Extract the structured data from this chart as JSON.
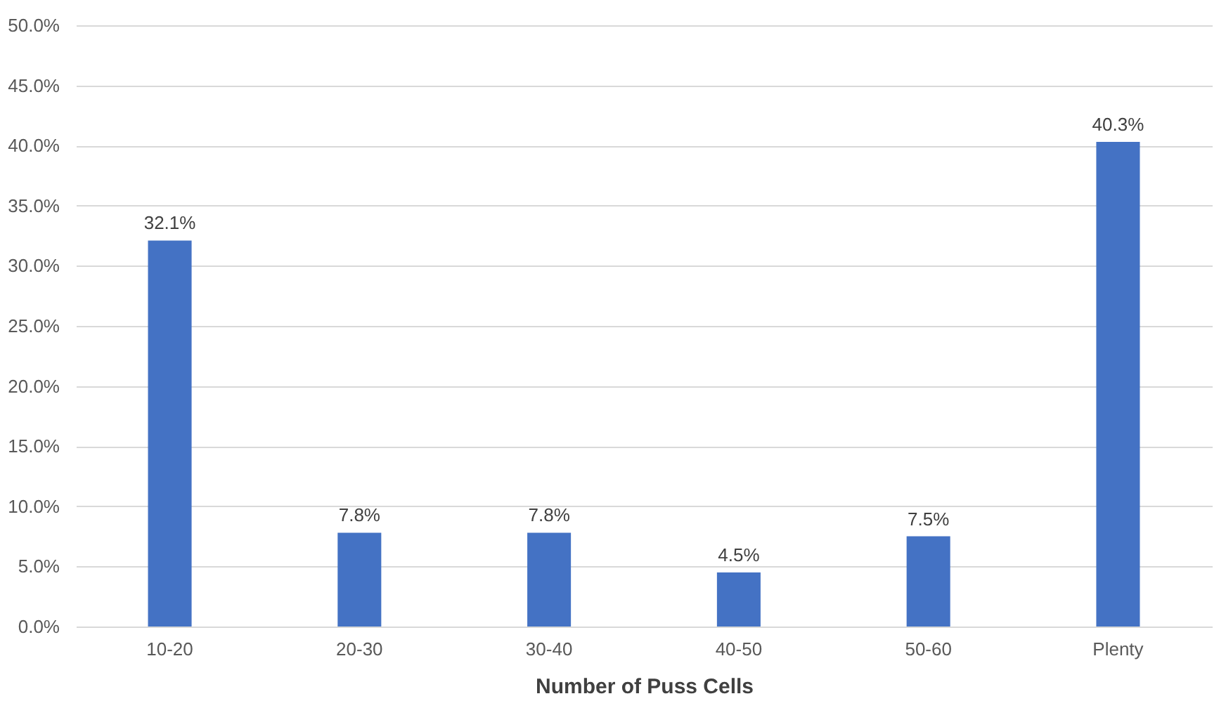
{
  "chart_data": {
    "type": "bar",
    "xlabel": "Number of Puss Cells",
    "categories": [
      "10-20",
      "20-30",
      "30-40",
      "40-50",
      "50-60",
      "Plenty"
    ],
    "values": [
      32.1,
      7.8,
      7.8,
      4.5,
      7.5,
      40.3
    ],
    "value_labels": [
      "32.1%",
      "7.8%",
      "7.8%",
      "4.5%",
      "7.5%",
      "40.3%"
    ],
    "color": "#4472c4",
    "ylim": [
      0,
      50
    ],
    "yticks": [
      {
        "value": 0,
        "label": "0.0%"
      },
      {
        "value": 5,
        "label": "5.0%"
      },
      {
        "value": 10,
        "label": "10.0%"
      },
      {
        "value": 15,
        "label": "15.0%"
      },
      {
        "value": 20,
        "label": "20.0%"
      },
      {
        "value": 25,
        "label": "25.0%"
      },
      {
        "value": 30,
        "label": "30.0%"
      },
      {
        "value": 35,
        "label": "35.0%"
      },
      {
        "value": 40,
        "label": "40.0%"
      },
      {
        "value": 45,
        "label": "45.0%"
      },
      {
        "value": 50,
        "label": "50.0%"
      }
    ],
    "grid": "y"
  }
}
